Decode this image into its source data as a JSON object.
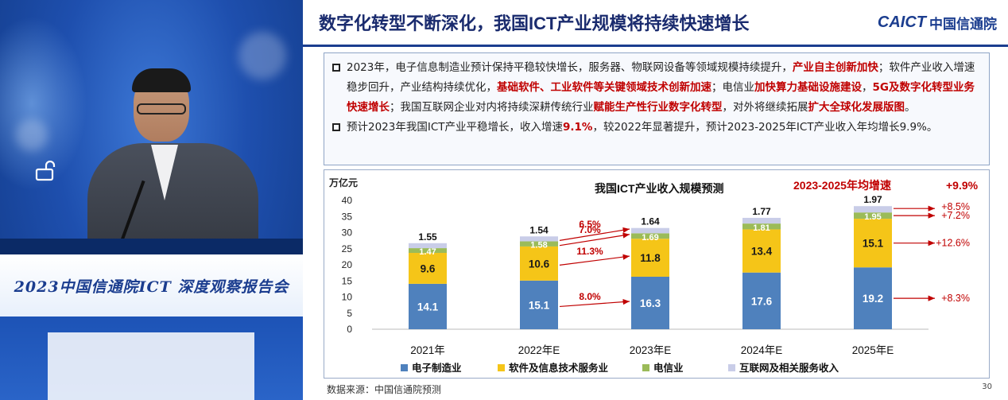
{
  "event_banner": "2023中国信通院ICT 深度观察报告会",
  "slide": {
    "title": "数字化转型不断深化，我国ICT产业规模将持续快速增长",
    "brand_en": "CAICT",
    "brand_cn": "中国信通院",
    "paragraph1": [
      {
        "t": "2023年，电子信息制造业预计保持平稳较快增长，服务器、物联网设备等领域规模持续提升，",
        "hl": false
      },
      {
        "t": "产业自主创新加快",
        "hl": true
      },
      {
        "t": "；软件产业收入增速稳步回升，产业结构持续优化，",
        "hl": false
      },
      {
        "t": "基础软件、工业软件等关键领域技术创新加速",
        "hl": true
      },
      {
        "t": "；电信业",
        "hl": false
      },
      {
        "t": "加快算力基础设施建设",
        "hl": true
      },
      {
        "t": "，",
        "hl": false
      },
      {
        "t": "5G及数字化转型业务快速增长",
        "hl": true
      },
      {
        "t": "；我国互联网企业对内将持续深耕传统行业",
        "hl": false
      },
      {
        "t": "赋能生产性行业数字化转型",
        "hl": true
      },
      {
        "t": "，对外将继续拓展",
        "hl": false
      },
      {
        "t": "扩大全球化发展版图",
        "hl": true
      },
      {
        "t": "。",
        "hl": false
      }
    ],
    "paragraph2": [
      {
        "t": "预计2023年我国ICT产业平稳增长，收入增速",
        "hl": false
      },
      {
        "t": "9.1%",
        "hl": true
      },
      {
        "t": "，较2022年显著提升，预计2023-2025年ICT产业收入年均增长9.9%。",
        "hl": false
      }
    ],
    "source": "数据来源：中国信通院预测",
    "page_number": "30"
  },
  "chart_data": {
    "type": "bar",
    "stacked": true,
    "title": "我国ICT产业收入规模预测",
    "ylabel": "万亿元",
    "ylim": [
      0,
      40
    ],
    "yticks": [
      0,
      5,
      10,
      15,
      20,
      25,
      30,
      35,
      40
    ],
    "categories": [
      "2021年",
      "2022年E",
      "2023年E",
      "2024年E",
      "2025年E"
    ],
    "series": [
      {
        "name": "电子制造业",
        "color": "#4f81bd",
        "label_color": "#ffffff",
        "values": [
          14.1,
          15.1,
          16.3,
          17.6,
          19.2
        ]
      },
      {
        "name": "软件及信息技术服务业",
        "color": "#f5c518",
        "label_color": "#1a1a1a",
        "values": [
          9.6,
          10.6,
          11.8,
          13.4,
          15.1
        ]
      },
      {
        "name": "电信业",
        "color": "#9bbb59",
        "label_color": "#ffffff",
        "values": [
          1.47,
          1.58,
          1.69,
          1.81,
          1.95
        ]
      },
      {
        "name": "互联网及相关服务收入",
        "color": "#c9cde8",
        "label_color": "#1a1a1a",
        "values": [
          1.55,
          1.54,
          1.64,
          1.77,
          1.97
        ]
      }
    ],
    "cagr_title": "2023-2025年均增速",
    "cagr_value": "+9.9%",
    "growth_annotations": [
      "6.5%",
      "7.0%",
      "11.3%",
      "8.0%"
    ],
    "cagr_annotations": [
      "+8.5%",
      "+7.2%",
      "+12.6%",
      "+8.3%"
    ],
    "accent_red": "#c00000"
  }
}
